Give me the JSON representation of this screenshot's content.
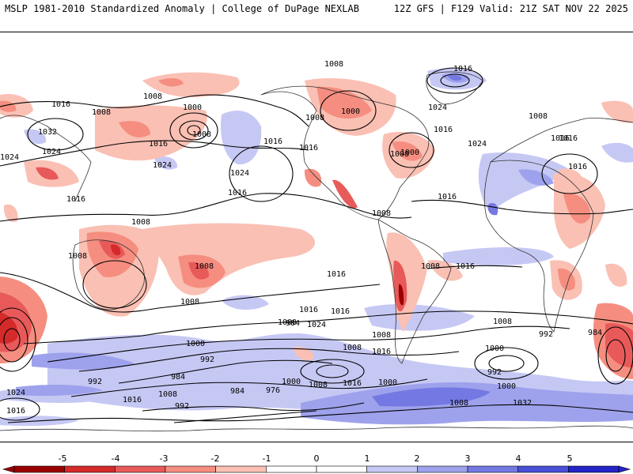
{
  "header": {
    "title_left": "MSLP 1981-2010 Standardized Anomaly | College of DuPage NEXLAB",
    "title_right": "12Z GFS | F129 Valid: 21Z SAT NOV 22 2025"
  },
  "colors": {
    "neg5": "#9b0000",
    "neg4": "#d42a2a",
    "neg3": "#e85a5a",
    "neg2": "#f58e80",
    "neg1": "#fac0b4",
    "neutral": "#ffffff",
    "pos1": "#c6c8f4",
    "pos2": "#9ea2ec",
    "pos3": "#7478e2",
    "pos4": "#4a4fd8",
    "pos5": "#2424c8",
    "contour": "#000000",
    "land": "#333333"
  },
  "isobar_labels": [
    "1008",
    "1016",
    "1008",
    "1000",
    "1024",
    "1008",
    "1032",
    "1016",
    "1024",
    "1008",
    "1016",
    "1024",
    "1024",
    "1008",
    "1016",
    "1000",
    "1024",
    "1016",
    "1016",
    "1008",
    "1000",
    "1008",
    "1016",
    "1016",
    "1016",
    "1008",
    "1024",
    "1016",
    "1008",
    "1008",
    "1008",
    "1016",
    "1016",
    "1008",
    "1016",
    "1016",
    "1016",
    "1008",
    "1016",
    "1008",
    "1000",
    "992",
    "984",
    "1000",
    "992",
    "984",
    "976",
    "984",
    "1024",
    "1008",
    "1008",
    "1016",
    "1000",
    "992",
    "984",
    "1000",
    "1016",
    "1008",
    "1000",
    "992",
    "1008",
    "1016",
    "992",
    "1000",
    "1008",
    "1032",
    "1016",
    "1024"
  ],
  "colorbar": {
    "ticks": [
      "-5",
      "-4",
      "-3",
      "-2",
      "-1",
      "0",
      "1",
      "2",
      "3",
      "4",
      "5"
    ]
  }
}
